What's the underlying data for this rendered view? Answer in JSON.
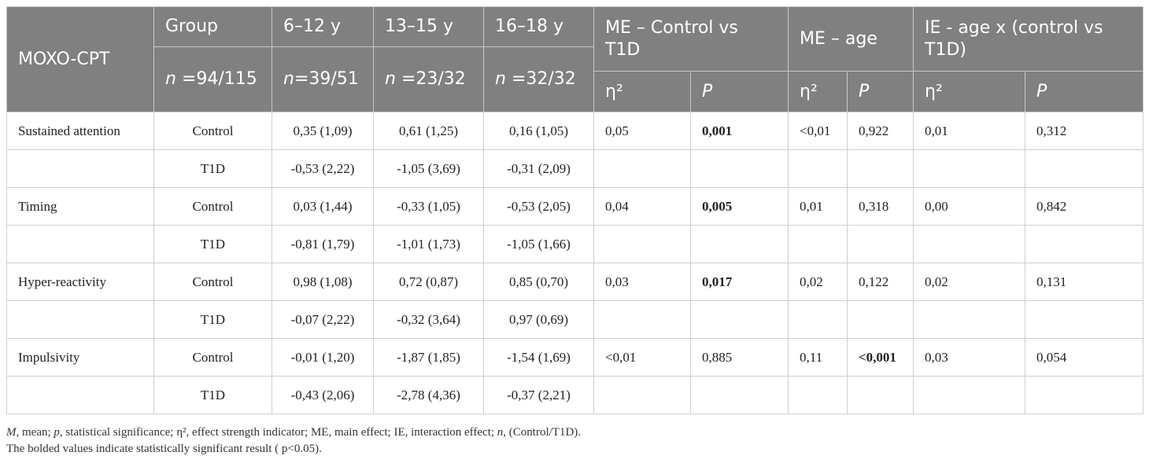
{
  "header": {
    "title": "MOXO-CPT",
    "group": "Group",
    "ages": [
      "6–12 y",
      "13–15 y",
      "16–18 y"
    ],
    "n_labels": [
      [
        "n",
        " =94/115"
      ],
      [
        "n",
        "=39/51"
      ],
      [
        "n",
        " =23/32"
      ],
      [
        "n",
        " =32/32"
      ]
    ],
    "effects": [
      "ME – Control vs T1D",
      "ME – age",
      "IE - age x (control vs T1D)"
    ],
    "stats": [
      "η²",
      "P"
    ]
  },
  "table": {
    "rows": [
      [
        "Sustained attention",
        "Control",
        "0,35 (1,09)",
        "0,61 (1,25)",
        "0,16 (1,05)",
        "0,05",
        "0,001",
        "<0,01",
        "0,922",
        "0,01",
        "0,312"
      ],
      [
        null,
        "T1D",
        "-0,53 (2,22)",
        "-1,05 (3,69)",
        "-0,31 (2,09)",
        null,
        null,
        null,
        null,
        null,
        null
      ],
      [
        "Timing",
        "Control",
        "0,03 (1,44)",
        "-0,33 (1,05)",
        "-0,53 (2,05)",
        "0,04",
        "0,005",
        "0,01",
        "0,318",
        "0,00",
        "0,842"
      ],
      [
        null,
        "T1D",
        "-0,81 (1,79)",
        "-1,01 (1,73)",
        "-1,05 (1,66)",
        null,
        null,
        null,
        null,
        null,
        null
      ],
      [
        "Hyper-reactivity",
        "Control",
        "0,98 (1,08)",
        "0,72 (0,87)",
        "0,85 (0,70)",
        "0,03",
        "0,017",
        "0,02",
        "0,122",
        "0,02",
        "0,131"
      ],
      [
        null,
        "T1D",
        "-0,07 (2,22)",
        "-0,32 (3,64)",
        "0,97 (0,69)",
        null,
        null,
        null,
        null,
        null,
        null
      ],
      [
        "Impulsivity",
        "Control",
        "-0,01 (1,20)",
        "-1,87 (1,85)",
        "-1,54 (1,69)",
        "<0,01",
        "0,885",
        "0,11",
        "<0,001",
        "0,03",
        "0,054"
      ],
      [
        null,
        "T1D",
        "-0,43 (2,06)",
        "-2,78 (4,36)",
        "-0,37 (2,21)",
        null,
        null,
        null,
        null,
        null,
        null
      ]
    ],
    "bold": [
      [
        0,
        6
      ],
      [
        2,
        6
      ],
      [
        4,
        6
      ],
      [
        6,
        8
      ]
    ]
  },
  "footnote": {
    "segments": [
      {
        "text": "M",
        "italic": true
      },
      {
        "text": ", mean; "
      },
      {
        "text": "p",
        "italic": true
      },
      {
        "text": ", statistical significance; η², effect strength indicator; ME, main effect; IE, interaction effect; "
      },
      {
        "text": "n",
        "italic": true
      },
      {
        "text": ", (Control/T1D)."
      }
    ],
    "note": "The bolded values indicate statistically significant result ( p<0.05)."
  }
}
